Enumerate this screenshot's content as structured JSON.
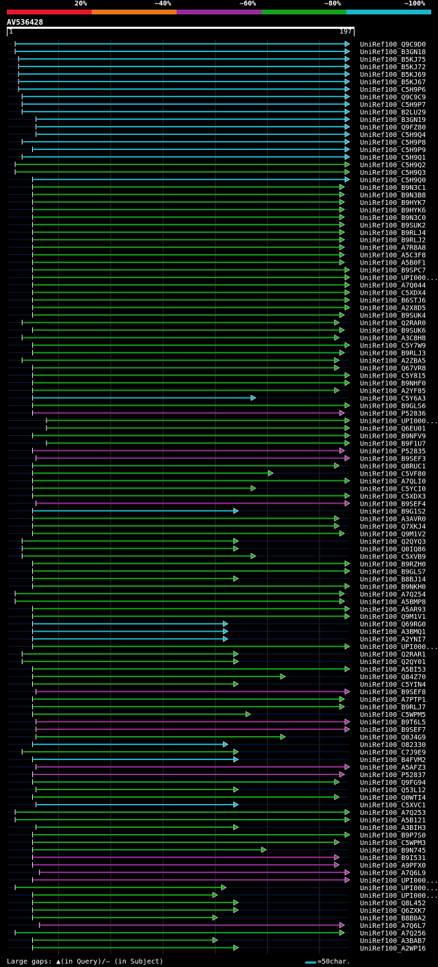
{
  "query_id": "AV536428",
  "ruler": {
    "start": "1",
    "end": "197"
  },
  "legend": [
    {
      "label": "20%",
      "color": "#e8182a"
    },
    {
      "label": "~40%",
      "color": "#e8761a"
    },
    {
      "label": "~60%",
      "color": "#9a2a9a"
    },
    {
      "label": "~80%",
      "color": "#17a21c"
    },
    {
      "label": "~100%",
      "color": "#19b6c8"
    }
  ],
  "footer": {
    "gaps_text": "Large gaps: ▲(in Query)/— (in Subject)",
    "scale_text": "=50char."
  },
  "chart_data": {
    "type": "alignment-overview",
    "query_length": 197,
    "x_grid": [
      30,
      60,
      90,
      120,
      150,
      180
    ],
    "hits": [
      {
        "name": "UniRef100_Q9C9D0",
        "start": 5,
        "end": 197,
        "color": "#19b6c8"
      },
      {
        "name": "UniRef100_B3GN18",
        "start": 5,
        "end": 197,
        "color": "#19b6c8"
      },
      {
        "name": "UniRef100_B5KJ75",
        "start": 7,
        "end": 197,
        "color": "#19b6c8"
      },
      {
        "name": "UniRef100_B5KJ72",
        "start": 7,
        "end": 197,
        "color": "#19b6c8"
      },
      {
        "name": "UniRef100_B5KJ69",
        "start": 7,
        "end": 197,
        "color": "#19b6c8"
      },
      {
        "name": "UniRef100_B5KJ67",
        "start": 7,
        "end": 197,
        "color": "#19b6c8"
      },
      {
        "name": "UniRef100_C5H9P6",
        "start": 7,
        "end": 197,
        "color": "#19b6c8"
      },
      {
        "name": "UniRef100_Q9C9C9",
        "start": 9,
        "end": 197,
        "color": "#19b6c8"
      },
      {
        "name": "UniRef100_C5H9P7",
        "start": 9,
        "end": 197,
        "color": "#19b6c8"
      },
      {
        "name": "UniRef100_B2LU29",
        "start": 9,
        "end": 197,
        "color": "#19b6c8"
      },
      {
        "name": "UniRef100_B3GN19",
        "start": 17,
        "end": 197,
        "color": "#19b6c8"
      },
      {
        "name": "UniRef100_Q9FZ80",
        "start": 17,
        "end": 197,
        "color": "#19b6c8"
      },
      {
        "name": "UniRef100_C5H9Q4",
        "start": 17,
        "end": 197,
        "color": "#19b6c8"
      },
      {
        "name": "UniRef100_C5H9P8",
        "start": 9,
        "end": 197,
        "color": "#19b6c8"
      },
      {
        "name": "UniRef100_C5H9P9",
        "start": 15,
        "end": 197,
        "color": "#19b6c8"
      },
      {
        "name": "UniRef100_C5H9Q1",
        "start": 9,
        "end": 197,
        "color": "#19b6c8"
      },
      {
        "name": "UniRef100_C5H9Q2",
        "start": 5,
        "end": 197,
        "color": "#17a21c"
      },
      {
        "name": "UniRef100_C5H9Q3",
        "start": 5,
        "end": 197,
        "color": "#17a21c"
      },
      {
        "name": "UniRef100_C5H9Q0",
        "start": 15,
        "end": 197,
        "color": "#19b6c8"
      },
      {
        "name": "UniRef100_B9N3C1",
        "start": 15,
        "end": 194,
        "color": "#17a21c"
      },
      {
        "name": "UniRef100_B9N3B8",
        "start": 15,
        "end": 194,
        "color": "#17a21c"
      },
      {
        "name": "UniRef100_B9HYK7",
        "start": 15,
        "end": 194,
        "color": "#17a21c"
      },
      {
        "name": "UniRef100_B9HYK6",
        "start": 15,
        "end": 194,
        "color": "#17a21c"
      },
      {
        "name": "UniRef100_B9N3C0",
        "start": 15,
        "end": 194,
        "color": "#17a21c"
      },
      {
        "name": "UniRef100_B9SUK2",
        "start": 15,
        "end": 194,
        "color": "#17a21c"
      },
      {
        "name": "UniRef100_B9RLJ4",
        "start": 15,
        "end": 194,
        "color": "#17a21c"
      },
      {
        "name": "UniRef100_B9RLJ2",
        "start": 15,
        "end": 194,
        "color": "#17a21c"
      },
      {
        "name": "UniRef100_A7R8A8",
        "start": 15,
        "end": 194,
        "color": "#17a21c"
      },
      {
        "name": "UniRef100_A5C3F8",
        "start": 15,
        "end": 194,
        "color": "#17a21c"
      },
      {
        "name": "UniRef100_A5B0F1",
        "start": 15,
        "end": 194,
        "color": "#17a21c"
      },
      {
        "name": "UniRef100_B9SPC7",
        "start": 15,
        "end": 197,
        "color": "#17a21c"
      },
      {
        "name": "UniRef100_UPI000...",
        "start": 15,
        "end": 197,
        "color": "#17a21c"
      },
      {
        "name": "UniRef100_A7Q044",
        "start": 15,
        "end": 197,
        "color": "#17a21c"
      },
      {
        "name": "UniRef100_C5XDX4",
        "start": 15,
        "end": 197,
        "color": "#17a21c"
      },
      {
        "name": "UniRef100_B6STJ6",
        "start": 15,
        "end": 197,
        "color": "#17a21c"
      },
      {
        "name": "UniRef100_A2X8D5",
        "start": 15,
        "end": 197,
        "color": "#17a21c"
      },
      {
        "name": "UniRef100_B9SUK4",
        "start": 15,
        "end": 194,
        "color": "#17a21c"
      },
      {
        "name": "UniRef100_Q2RAR0",
        "start": 9,
        "end": 191,
        "color": "#17a21c"
      },
      {
        "name": "UniRef100_B9SUK6",
        "start": 15,
        "end": 194,
        "color": "#17a21c"
      },
      {
        "name": "UniRef100_A3C8H8",
        "start": 9,
        "end": 191,
        "color": "#17a21c"
      },
      {
        "name": "UniRef100_C5Y7W9",
        "start": 15,
        "end": 197,
        "color": "#17a21c"
      },
      {
        "name": "UniRef100_B9RLJ3",
        "start": 15,
        "end": 194,
        "color": "#17a21c"
      },
      {
        "name": "UniRef100_A2ZBA5",
        "start": 9,
        "end": 191,
        "color": "#17a21c"
      },
      {
        "name": "UniRef100_Q67VR8",
        "start": 15,
        "end": 191,
        "color": "#17a21c"
      },
      {
        "name": "UniRef100_C5Y815",
        "start": 15,
        "end": 197,
        "color": "#17a21c"
      },
      {
        "name": "UniRef100_B9NHF0",
        "start": 15,
        "end": 197,
        "color": "#17a21c"
      },
      {
        "name": "UniRef100_A2YF85",
        "start": 15,
        "end": 191,
        "color": "#17a21c"
      },
      {
        "name": "UniRef100_C5Y6A3",
        "start": 15,
        "end": 143,
        "color": "#19b6c8"
      },
      {
        "name": "UniRef100_B9GLS6",
        "start": 15,
        "end": 197,
        "color": "#17a21c"
      },
      {
        "name": "UniRef100_P52836",
        "start": 15,
        "end": 194,
        "color": "#9a2a9a"
      },
      {
        "name": "UniRef100_UPI000...",
        "start": 23,
        "end": 197,
        "color": "#17a21c"
      },
      {
        "name": "UniRef100_Q6EU01",
        "start": 23,
        "end": 197,
        "color": "#17a21c"
      },
      {
        "name": "UniRef100_B9NFV9",
        "start": 15,
        "end": 197,
        "color": "#17a21c"
      },
      {
        "name": "UniRef100_B9F1U7",
        "start": 23,
        "end": 197,
        "color": "#17a21c"
      },
      {
        "name": "UniRef100_P52835",
        "start": 15,
        "end": 194,
        "color": "#9a2a9a"
      },
      {
        "name": "UniRef100_B9SEF3",
        "start": 17,
        "end": 197,
        "color": "#9a2a9a"
      },
      {
        "name": "UniRef100_Q8RUC1",
        "start": 15,
        "end": 191,
        "color": "#17a21c"
      },
      {
        "name": "UniRef100_C5VF80",
        "start": 15,
        "end": 153,
        "color": "#17a21c"
      },
      {
        "name": "UniRef100_A7QLI0",
        "start": 15,
        "end": 197,
        "color": "#17a21c"
      },
      {
        "name": "UniRef100_C5YCI0",
        "start": 15,
        "end": 143,
        "color": "#17a21c"
      },
      {
        "name": "UniRef100_C5XDX3",
        "start": 15,
        "end": 197,
        "color": "#17a21c"
      },
      {
        "name": "UniRef100_B9SEF4",
        "start": 17,
        "end": 197,
        "color": "#9a2a9a"
      },
      {
        "name": "UniRef100_B9G1S2",
        "start": 15,
        "end": 133,
        "color": "#19b6c8"
      },
      {
        "name": "UniRef100_A3AVR0",
        "start": 15,
        "end": 191,
        "color": "#17a21c"
      },
      {
        "name": "UniRef100_Q7XKJ4",
        "start": 15,
        "end": 191,
        "color": "#17a21c"
      },
      {
        "name": "UniRef100_Q9M1V2",
        "start": 15,
        "end": 194,
        "color": "#17a21c"
      },
      {
        "name": "UniRef100_Q2QYQ3",
        "start": 9,
        "end": 133,
        "color": "#17a21c"
      },
      {
        "name": "UniRef100_Q0IQ86",
        "start": 9,
        "end": 133,
        "color": "#17a21c"
      },
      {
        "name": "UniRef100_C5XVB9",
        "start": 9,
        "end": 143,
        "color": "#17a21c"
      },
      {
        "name": "UniRef100_B9RZH0",
        "start": 15,
        "end": 197,
        "color": "#17a21c"
      },
      {
        "name": "UniRef100_B9GLS7",
        "start": 15,
        "end": 197,
        "color": "#17a21c"
      },
      {
        "name": "UniRef100_B8BJ14",
        "start": 15,
        "end": 133,
        "color": "#17a21c"
      },
      {
        "name": "UniRef100_B9NKH0",
        "start": 15,
        "end": 197,
        "color": "#17a21c"
      },
      {
        "name": "UniRef100_A7Q254",
        "start": 5,
        "end": 194,
        "color": "#17a21c"
      },
      {
        "name": "UniRef100_A5BMP8",
        "start": 5,
        "end": 194,
        "color": "#17a21c"
      },
      {
        "name": "UniRef100_A5AR93",
        "start": 15,
        "end": 197,
        "color": "#17a21c"
      },
      {
        "name": "UniRef100_Q9M1V1",
        "start": 15,
        "end": 197,
        "color": "#17a21c"
      },
      {
        "name": "UniRef100_Q69RG0",
        "start": 15,
        "end": 127,
        "color": "#19b6c8"
      },
      {
        "name": "UniRef100_A3BMQ1",
        "start": 15,
        "end": 127,
        "color": "#19b6c8"
      },
      {
        "name": "UniRef100_A2YNI7",
        "start": 15,
        "end": 127,
        "color": "#19b6c8"
      },
      {
        "name": "UniRef100_UPI000...",
        "start": 15,
        "end": 197,
        "color": "#17a21c"
      },
      {
        "name": "UniRef100_Q2RAR1",
        "start": 9,
        "end": 133,
        "color": "#17a21c"
      },
      {
        "name": "UniRef100_Q2QY01",
        "start": 9,
        "end": 133,
        "color": "#17a21c"
      },
      {
        "name": "UniRef100_A5BI53",
        "start": 15,
        "end": 197,
        "color": "#17a21c"
      },
      {
        "name": "UniRef100_Q84Z70",
        "start": 15,
        "end": 160,
        "color": "#17a21c"
      },
      {
        "name": "UniRef100_C5YIN4",
        "start": 15,
        "end": 133,
        "color": "#17a21c"
      },
      {
        "name": "UniRef100_B9SEF8",
        "start": 17,
        "end": 197,
        "color": "#9a2a9a"
      },
      {
        "name": "UniRef100_A7PTP1",
        "start": 15,
        "end": 194,
        "color": "#17a21c"
      },
      {
        "name": "UniRef100_B9RLJ7",
        "start": 15,
        "end": 194,
        "color": "#17a21c"
      },
      {
        "name": "UniRef100_C5WPM5",
        "start": 15,
        "end": 140,
        "color": "#17a21c"
      },
      {
        "name": "UniRef100_B9T6L5",
        "start": 17,
        "end": 197,
        "color": "#9a2a9a"
      },
      {
        "name": "UniRef100_B9SEF7",
        "start": 17,
        "end": 197,
        "color": "#9a2a9a"
      },
      {
        "name": "UniRef100_Q0J4G9",
        "start": 17,
        "end": 160,
        "color": "#17a21c"
      },
      {
        "name": "UniRef100_O82330",
        "start": 15,
        "end": 127,
        "color": "#19b6c8"
      },
      {
        "name": "UniRef100_C7J9E9",
        "start": 9,
        "end": 133,
        "color": "#17a21c"
      },
      {
        "name": "UniRef100_B4FVM2",
        "start": 15,
        "end": 133,
        "color": "#19b6c8"
      },
      {
        "name": "UniRef100_A5AFZ3",
        "start": 17,
        "end": 197,
        "color": "#9a2a9a"
      },
      {
        "name": "UniRef100_P52837",
        "start": 15,
        "end": 194,
        "color": "#9a2a9a"
      },
      {
        "name": "UniRef100_Q9FG94",
        "start": 15,
        "end": 191,
        "color": "#17a21c"
      },
      {
        "name": "UniRef100_Q53L12",
        "start": 17,
        "end": 133,
        "color": "#17a21c"
      },
      {
        "name": "UniRef100_Q0WTI4",
        "start": 15,
        "end": 191,
        "color": "#17a21c"
      },
      {
        "name": "UniRef100_C5XVC1",
        "start": 17,
        "end": 133,
        "color": "#19b6c8"
      },
      {
        "name": "UniRef100_A7Q253",
        "start": 5,
        "end": 197,
        "color": "#17a21c"
      },
      {
        "name": "UniRef100_A5B121",
        "start": 5,
        "end": 197,
        "color": "#17a21c"
      },
      {
        "name": "UniRef100_A3BIH3",
        "start": 17,
        "end": 133,
        "color": "#17a21c"
      },
      {
        "name": "UniRef100_B9P7S0",
        "start": 15,
        "end": 197,
        "color": "#17a21c"
      },
      {
        "name": "UniRef100_C5WPM3",
        "start": 15,
        "end": 191,
        "color": "#17a21c"
      },
      {
        "name": "UniRef100_B9N745",
        "start": 15,
        "end": 149,
        "color": "#17a21c"
      },
      {
        "name": "UniRef100_B9I531",
        "start": 15,
        "end": 191,
        "color": "#9a2a9a"
      },
      {
        "name": "UniRef100_A9PFX0",
        "start": 15,
        "end": 191,
        "color": "#9a2a9a"
      },
      {
        "name": "UniRef100_A7Q6L9",
        "start": 19,
        "end": 197,
        "color": "#9a2a9a"
      },
      {
        "name": "UniRef100_UPI000...",
        "start": 15,
        "end": 197,
        "color": "#9a2a9a"
      },
      {
        "name": "UniRef100_UPI000...",
        "start": 5,
        "end": 126,
        "color": "#17a21c"
      },
      {
        "name": "UniRef100_UPI000...",
        "start": 15,
        "end": 121,
        "color": "#17a21c"
      },
      {
        "name": "UniRef100_Q8L452",
        "start": 15,
        "end": 133,
        "color": "#17a21c"
      },
      {
        "name": "UniRef100_Q6ZXK7",
        "start": 15,
        "end": 133,
        "color": "#17a21c"
      },
      {
        "name": "UniRef100_B8B0A2",
        "start": 15,
        "end": 121,
        "color": "#17a21c"
      },
      {
        "name": "UniRef100_A7Q6L7",
        "start": 19,
        "end": 194,
        "color": "#9a2a9a"
      },
      {
        "name": "UniRef100_A7Q256",
        "start": 5,
        "end": 194,
        "color": "#17a21c"
      },
      {
        "name": "UniRef100_A3BAB7",
        "start": 15,
        "end": 121,
        "color": "#17a21c"
      },
      {
        "name": "UniRef100_A2WP16",
        "start": 15,
        "end": 133,
        "color": "#17a21c"
      }
    ]
  }
}
